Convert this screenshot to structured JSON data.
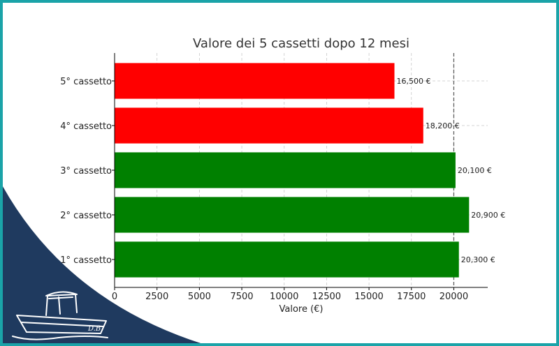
{
  "colors": {
    "frame": "#1aa3a8",
    "corner": "#1f3a5f",
    "loss": "#ff0000",
    "gain": "#008000"
  },
  "logo": {
    "text": "D.B."
  },
  "chart_data": {
    "type": "bar",
    "orientation": "horizontal",
    "title": "Valore dei 5 cassetti dopo 12 mesi",
    "xlabel": "Valore (€)",
    "ylabel": "",
    "xlim": [
      0,
      22000
    ],
    "xticks": [
      0,
      2500,
      5000,
      7500,
      10000,
      12500,
      15000,
      17500,
      20000
    ],
    "grid": true,
    "reference_line": 20000,
    "categories": [
      "1° cassetto",
      "2° cassetto",
      "3° cassetto",
      "4° cassetto",
      "5° cassetto"
    ],
    "values": [
      20300,
      20900,
      20100,
      18200,
      16500
    ],
    "value_labels": [
      "20,300 €",
      "20,900 €",
      "20,100 €",
      "18,200 €",
      "16,500 €"
    ],
    "bar_colors": [
      "#008000",
      "#008000",
      "#008000",
      "#ff0000",
      "#ff0000"
    ]
  }
}
